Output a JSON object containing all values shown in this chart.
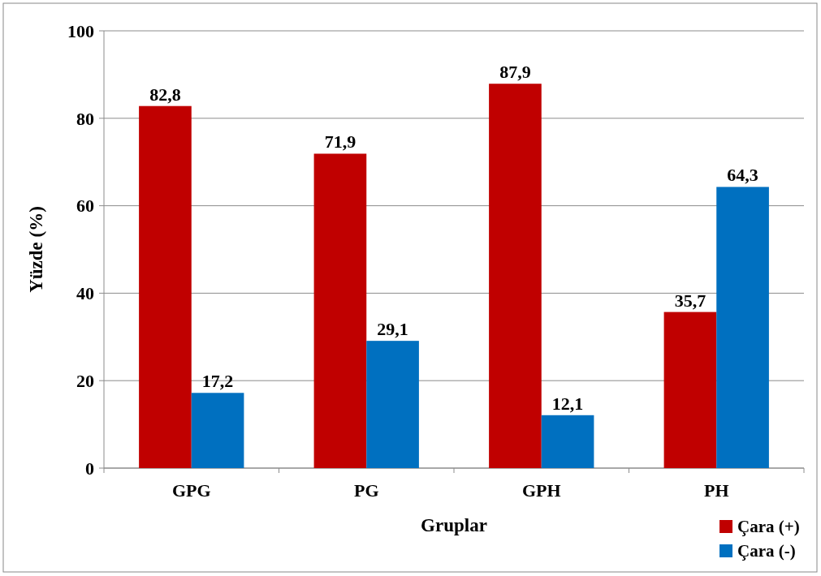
{
  "chart_data": {
    "type": "bar",
    "xlabel": "Gruplar",
    "ylabel": "Yüzde (%)",
    "categories": [
      "GPG",
      "PG",
      "GPH",
      "PH"
    ],
    "series": [
      {
        "name": "Çara (+)",
        "color": "#c00000",
        "values": [
          82.8,
          71.9,
          87.9,
          35.7
        ],
        "value_labels": [
          "82,8",
          "71,9",
          "87,9",
          "35,7"
        ]
      },
      {
        "name": "Çara (-)",
        "color": "#0070c0",
        "values": [
          17.2,
          29.1,
          12.1,
          64.3
        ],
        "value_labels": [
          "17,2",
          "29,1",
          "12,1",
          "64,3"
        ]
      }
    ],
    "ylim": [
      0,
      100
    ],
    "yticks": [
      0,
      20,
      40,
      60,
      80,
      100
    ],
    "grid": "y",
    "legend": "bottom right"
  }
}
